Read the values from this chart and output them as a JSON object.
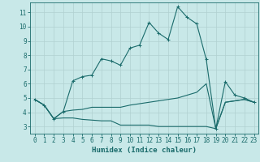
{
  "title": "",
  "xlabel": "Humidex (Indice chaleur)",
  "bg_color": "#c8e8e8",
  "grid_color": "#b0d0d0",
  "line_color": "#1a6b6b",
  "xlim": [
    -0.5,
    23.5
  ],
  "ylim": [
    2.5,
    11.7
  ],
  "xticks": [
    0,
    1,
    2,
    3,
    4,
    5,
    6,
    7,
    8,
    9,
    10,
    11,
    12,
    13,
    14,
    15,
    16,
    17,
    18,
    19,
    20,
    21,
    22,
    23
  ],
  "yticks": [
    3,
    4,
    5,
    6,
    7,
    8,
    9,
    10,
    11
  ],
  "curve1_x": [
    0,
    1,
    2,
    3,
    4,
    5,
    6,
    7,
    8,
    9,
    10,
    11,
    12,
    13,
    14,
    15,
    16,
    17,
    18,
    19,
    20,
    21,
    22,
    23
  ],
  "curve1_y": [
    4.9,
    4.5,
    3.55,
    4.05,
    6.2,
    6.5,
    6.6,
    7.75,
    7.6,
    7.3,
    8.5,
    8.7,
    10.3,
    9.55,
    9.1,
    11.4,
    10.65,
    10.2,
    7.7,
    2.85,
    6.15,
    5.2,
    5.0,
    4.7
  ],
  "curve2_x": [
    0,
    1,
    2,
    3,
    4,
    5,
    6,
    7,
    8,
    9,
    10,
    11,
    12,
    13,
    14,
    15,
    16,
    17,
    18,
    19,
    20,
    21,
    22,
    23
  ],
  "curve2_y": [
    4.9,
    4.5,
    3.55,
    4.05,
    4.15,
    4.2,
    4.35,
    4.35,
    4.35,
    4.35,
    4.5,
    4.6,
    4.7,
    4.8,
    4.9,
    5.0,
    5.2,
    5.4,
    6.0,
    2.85,
    4.7,
    4.8,
    4.9,
    4.7
  ],
  "curve3_x": [
    0,
    1,
    2,
    3,
    4,
    5,
    6,
    7,
    8,
    9,
    10,
    11,
    12,
    13,
    14,
    15,
    16,
    17,
    18,
    19,
    20,
    21,
    22,
    23
  ],
  "curve3_y": [
    4.9,
    4.5,
    3.55,
    3.6,
    3.6,
    3.5,
    3.45,
    3.4,
    3.4,
    3.1,
    3.1,
    3.1,
    3.1,
    3.0,
    3.0,
    3.0,
    3.0,
    3.0,
    3.0,
    2.85,
    4.7,
    4.8,
    4.9,
    4.7
  ],
  "tick_fontsize": 5.5,
  "xlabel_fontsize": 6.5,
  "lw": 0.8,
  "marker_size": 2.5
}
